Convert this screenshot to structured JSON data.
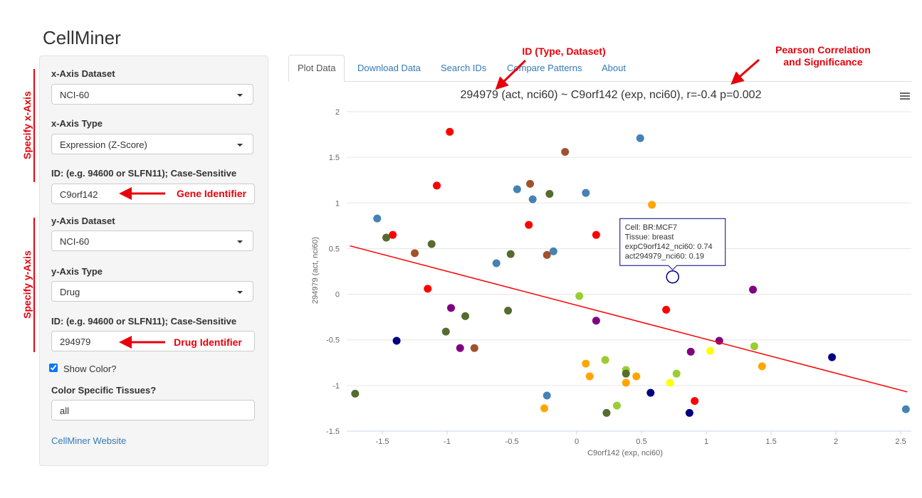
{
  "header": {
    "title": "CellMiner"
  },
  "sidebar": {
    "x_dataset": {
      "label": "x-Axis Dataset",
      "value": "NCI-60"
    },
    "x_type": {
      "label": "x-Axis Type",
      "value": "Expression (Z-Score)"
    },
    "x_id": {
      "label": "ID: (e.g. 94600 or SLFN11); Case-Sensitive",
      "value": "C9orf142"
    },
    "y_dataset": {
      "label": "y-Axis Dataset",
      "value": "NCI-60"
    },
    "y_type": {
      "label": "y-Axis Type",
      "value": "Drug"
    },
    "y_id": {
      "label": "ID: (e.g. 94600 or SLFN11); Case-Sensitive",
      "value": "294979"
    },
    "show_color": {
      "label": "Show Color?",
      "checked": true
    },
    "tissues": {
      "label": "Color Specific Tissues?",
      "value": "all"
    },
    "link": "CellMiner Website"
  },
  "tabs": [
    "Plot Data",
    "Download Data",
    "Search IDs",
    "Compare Patterns",
    "About"
  ],
  "active_tab": 0,
  "annotations": {
    "specify_x": "Specify x-Axis",
    "specify_y": "Specify y-Axis",
    "gene_id": "Gene Identifier",
    "drug_id": "Drug Identifier",
    "id_type": "ID (Type, Dataset)",
    "pearson": [
      "Pearson Correlation",
      "and Significance"
    ]
  },
  "chart_data": {
    "type": "scatter",
    "title": "294979 (act, nci60) ~ C9orf142 (exp, nci60), r=-0.4 p=0.002",
    "x_label": "C9orf142 (exp, nci60)",
    "y_label": "294979 (act, nci60)",
    "x": [
      -0.98,
      0.49,
      -0.09,
      -1.08,
      -0.46,
      -0.36,
      -0.34,
      -0.21,
      0.07,
      0.58,
      -1.54,
      -1.42,
      -1.47,
      -0.37,
      0.15,
      -1.12,
      -1.25,
      -0.51,
      -0.18,
      -0.23,
      -0.62,
      -1.15,
      0.02,
      1.36,
      -0.97,
      -0.86,
      -0.53,
      0.69,
      0.15,
      -1.01,
      -1.39,
      -0.9,
      -0.79,
      1.1,
      1.37,
      1.03,
      0.88,
      1.97,
      0.22,
      0.07,
      1.43,
      0.38,
      0.38,
      0.1,
      0.46,
      0.77,
      0.38,
      0.72,
      -1.71,
      -0.23,
      0.57,
      0.91,
      0.31,
      -0.25,
      0.23,
      0.87,
      2.54
    ],
    "y": [
      1.78,
      1.71,
      1.56,
      1.19,
      1.15,
      1.21,
      1.04,
      1.1,
      1.11,
      0.98,
      0.83,
      0.65,
      0.62,
      0.76,
      0.65,
      0.55,
      0.45,
      0.44,
      0.47,
      0.43,
      0.34,
      0.06,
      -0.02,
      0.05,
      -0.15,
      -0.24,
      -0.18,
      -0.17,
      -0.29,
      -0.41,
      -0.51,
      -0.59,
      -0.59,
      -0.51,
      -0.57,
      -0.62,
      -0.63,
      -0.69,
      -0.72,
      -0.76,
      -0.79,
      -0.83,
      -0.87,
      -0.9,
      -0.9,
      -0.87,
      -0.97,
      -0.97,
      -1.09,
      -1.11,
      -1.08,
      -1.17,
      -1.22,
      -1.25,
      -1.3,
      -1.3,
      -1.26
    ],
    "colors": [
      "#ff0000",
      "#4682b4",
      "#a0522d",
      "#ff0000",
      "#4682b4",
      "#a0522d",
      "#4682b4",
      "#556b2f",
      "#4682b4",
      "#ffa500",
      "#4682b4",
      "#ff0000",
      "#556b2f",
      "#ff0000",
      "#ff0000",
      "#556b2f",
      "#a0522d",
      "#556b2f",
      "#4682b4",
      "#a0522d",
      "#4682b4",
      "#ff0000",
      "#9acd32",
      "#800080",
      "#800080",
      "#556b2f",
      "#556b2f",
      "#ff0000",
      "#800080",
      "#556b2f",
      "#000080",
      "#800080",
      "#a0522d",
      "#800080",
      "#9acd32",
      "#ffff00",
      "#800080",
      "#000080",
      "#9acd32",
      "#ffa500",
      "#ffa500",
      "#9acd32",
      "#556b2f",
      "#ffa500",
      "#ffa500",
      "#9acd32",
      "#ffa500",
      "#ffff00",
      "#556b2f",
      "#4682b4",
      "#000080",
      "#ff0000",
      "#9acd32",
      "#ffa500",
      "#556b2f",
      "#000080",
      "#4682b4"
    ],
    "fit_line": {
      "x": [
        -1.75,
        2.55
      ],
      "y": [
        0.53,
        -1.07
      ],
      "color": "#ff0000"
    },
    "hover_point": {
      "x": 0.74,
      "y": 0.19
    },
    "tooltip": [
      "Cell: BR:MCF7",
      "Tissue: breast",
      "expC9orf142_nci60: 0.74",
      "act294979_nci60: 0.19"
    ],
    "xlim": [
      -1.775,
      2.582
    ],
    "ylim": [
      -1.5,
      2
    ],
    "xticks": [
      -1.5,
      -1,
      -0.5,
      0,
      0.5,
      1,
      1.5,
      2,
      2.5
    ],
    "yticks": [
      -1.5,
      -1,
      -0.5,
      0,
      0.5,
      1,
      1.5,
      2
    ],
    "grid": true
  }
}
